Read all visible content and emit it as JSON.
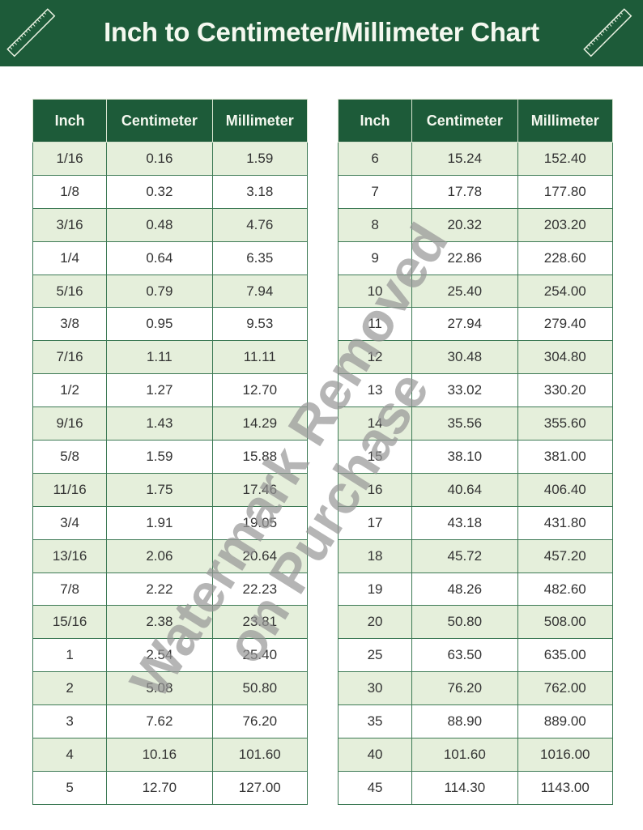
{
  "title": "Inch to Centimeter/Millimeter Chart",
  "colors": {
    "header_green": "#1d5b39",
    "row_tint": "#e5efdb"
  },
  "icons": [
    "ruler-icon"
  ],
  "columns": [
    "Inch",
    "Centimeter",
    "Millimeter"
  ],
  "left_table": [
    [
      "1/16",
      "0.16",
      "1.59"
    ],
    [
      "1/8",
      "0.32",
      "3.18"
    ],
    [
      "3/16",
      "0.48",
      "4.76"
    ],
    [
      "1/4",
      "0.64",
      "6.35"
    ],
    [
      "5/16",
      "0.79",
      "7.94"
    ],
    [
      "3/8",
      "0.95",
      "9.53"
    ],
    [
      "7/16",
      "1.11",
      "11.11"
    ],
    [
      "1/2",
      "1.27",
      "12.70"
    ],
    [
      "9/16",
      "1.43",
      "14.29"
    ],
    [
      "5/8",
      "1.59",
      "15.88"
    ],
    [
      "11/16",
      "1.75",
      "17.46"
    ],
    [
      "3/4",
      "1.91",
      "19.05"
    ],
    [
      "13/16",
      "2.06",
      "20.64"
    ],
    [
      "7/8",
      "2.22",
      "22.23"
    ],
    [
      "15/16",
      "2.38",
      "23.81"
    ],
    [
      "1",
      "2.54",
      "25.40"
    ],
    [
      "2",
      "5.08",
      "50.80"
    ],
    [
      "3",
      "7.62",
      "76.20"
    ],
    [
      "4",
      "10.16",
      "101.60"
    ],
    [
      "5",
      "12.70",
      "127.00"
    ]
  ],
  "right_table": [
    [
      "6",
      "15.24",
      "152.40"
    ],
    [
      "7",
      "17.78",
      "177.80"
    ],
    [
      "8",
      "20.32",
      "203.20"
    ],
    [
      "9",
      "22.86",
      "228.60"
    ],
    [
      "10",
      "25.40",
      "254.00"
    ],
    [
      "11",
      "27.94",
      "279.40"
    ],
    [
      "12",
      "30.48",
      "304.80"
    ],
    [
      "13",
      "33.02",
      "330.20"
    ],
    [
      "14",
      "35.56",
      "355.60"
    ],
    [
      "15",
      "38.10",
      "381.00"
    ],
    [
      "16",
      "40.64",
      "406.40"
    ],
    [
      "17",
      "43.18",
      "431.80"
    ],
    [
      "18",
      "45.72",
      "457.20"
    ],
    [
      "19",
      "48.26",
      "482.60"
    ],
    [
      "20",
      "50.80",
      "508.00"
    ],
    [
      "25",
      "63.50",
      "635.00"
    ],
    [
      "30",
      "76.20",
      "762.00"
    ],
    [
      "35",
      "88.90",
      "889.00"
    ],
    [
      "40",
      "101.60",
      "1016.00"
    ],
    [
      "45",
      "114.30",
      "1143.00"
    ]
  ],
  "watermark": [
    "Watermark Removed",
    "on Purchase"
  ]
}
